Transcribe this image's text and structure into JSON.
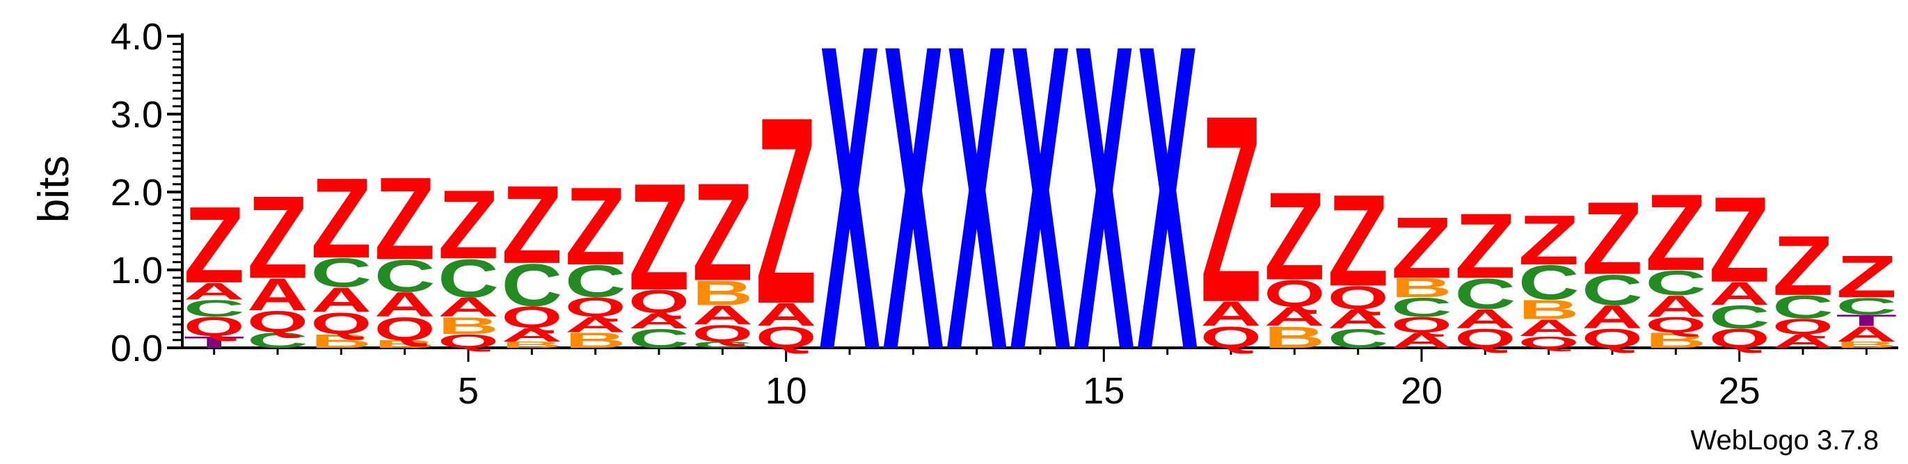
{
  "chart_data": {
    "type": "sequence-logo",
    "ylabel": "bits",
    "ylim": [
      0,
      4.0
    ],
    "y_ticks": [
      "0.0",
      "1.0",
      "2.0",
      "3.0",
      "4.0"
    ],
    "x_ticks": [
      5,
      10,
      15,
      20,
      25
    ],
    "n_positions": 27,
    "credit": "WebLogo 3.7.8",
    "colors": {
      "Z": "#ff0000",
      "Q": "#ff0000",
      "A": "#ff0000",
      "C": "#228b22",
      "B": "#ff8c00",
      "X": "#0000ff",
      "T": "#800080"
    },
    "columns": [
      {
        "position": 1,
        "stack": [
          [
            "T",
            0.15
          ],
          [
            "Q",
            0.25
          ],
          [
            "C",
            0.22
          ],
          [
            "A",
            0.22
          ],
          [
            "Z",
            1.0
          ]
        ]
      },
      {
        "position": 2,
        "stack": [
          [
            "C",
            0.2
          ],
          [
            "Q",
            0.28
          ],
          [
            "A",
            0.42
          ],
          [
            "Z",
            1.08
          ]
        ]
      },
      {
        "position": 3,
        "stack": [
          [
            "B",
            0.18
          ],
          [
            "Q",
            0.28
          ],
          [
            "A",
            0.32
          ],
          [
            "C",
            0.38
          ],
          [
            "Z",
            1.05
          ]
        ]
      },
      {
        "position": 4,
        "stack": [
          [
            "B",
            0.1
          ],
          [
            "Q",
            0.3
          ],
          [
            "A",
            0.32
          ],
          [
            "C",
            0.42
          ],
          [
            "Z",
            1.08
          ]
        ]
      },
      {
        "position": 5,
        "stack": [
          [
            "Q",
            0.18
          ],
          [
            "B",
            0.22
          ],
          [
            "A",
            0.25
          ],
          [
            "C",
            0.5
          ],
          [
            "Z",
            0.9
          ]
        ]
      },
      {
        "position": 6,
        "stack": [
          [
            "B",
            0.08
          ],
          [
            "A",
            0.18
          ],
          [
            "Q",
            0.28
          ],
          [
            "C",
            0.55
          ],
          [
            "Z",
            1.02
          ]
        ]
      },
      {
        "position": 7,
        "stack": [
          [
            "B",
            0.2
          ],
          [
            "A",
            0.2
          ],
          [
            "Q",
            0.25
          ],
          [
            "C",
            0.42
          ],
          [
            "Z",
            1.02
          ]
        ]
      },
      {
        "position": 8,
        "stack": [
          [
            "C",
            0.25
          ],
          [
            "A",
            0.2
          ],
          [
            "Q",
            0.3
          ],
          [
            "Z",
            1.4
          ]
        ]
      },
      {
        "position": 9,
        "stack": [
          [
            "C",
            0.08
          ],
          [
            "Q",
            0.22
          ],
          [
            "A",
            0.25
          ],
          [
            "B",
            0.32
          ],
          [
            "Z",
            1.28
          ]
        ]
      },
      {
        "position": 10,
        "stack": [
          [
            "Q",
            0.28
          ],
          [
            "A",
            0.3
          ],
          [
            "Z",
            2.45
          ]
        ]
      },
      {
        "position": 11,
        "stack": [
          [
            "X",
            4.0
          ]
        ]
      },
      {
        "position": 12,
        "stack": [
          [
            "X",
            4.0
          ]
        ]
      },
      {
        "position": 13,
        "stack": [
          [
            "X",
            4.0
          ]
        ]
      },
      {
        "position": 14,
        "stack": [
          [
            "X",
            4.0
          ]
        ]
      },
      {
        "position": 15,
        "stack": [
          [
            "X",
            4.0
          ]
        ]
      },
      {
        "position": 16,
        "stack": [
          [
            "X",
            4.0
          ]
        ]
      },
      {
        "position": 17,
        "stack": [
          [
            "Q",
            0.28
          ],
          [
            "A",
            0.32
          ],
          [
            "Z",
            2.45
          ]
        ]
      },
      {
        "position": 18,
        "stack": [
          [
            "B",
            0.28
          ],
          [
            "A",
            0.25
          ],
          [
            "Q",
            0.35
          ],
          [
            "Z",
            1.15
          ]
        ]
      },
      {
        "position": 19,
        "stack": [
          [
            "C",
            0.25
          ],
          [
            "A",
            0.25
          ],
          [
            "Q",
            0.3
          ],
          [
            "Z",
            1.2
          ]
        ]
      },
      {
        "position": 20,
        "stack": [
          [
            "A",
            0.2
          ],
          [
            "Q",
            0.2
          ],
          [
            "C",
            0.25
          ],
          [
            "B",
            0.25
          ],
          [
            "Z",
            0.8
          ]
        ]
      },
      {
        "position": 21,
        "stack": [
          [
            "Q",
            0.25
          ],
          [
            "A",
            0.25
          ],
          [
            "C",
            0.4
          ],
          [
            "Z",
            0.85
          ]
        ]
      },
      {
        "position": 22,
        "stack": [
          [
            "Q",
            0.15
          ],
          [
            "A",
            0.22
          ],
          [
            "B",
            0.25
          ],
          [
            "C",
            0.45
          ],
          [
            "Z",
            0.65
          ]
        ]
      },
      {
        "position": 23,
        "stack": [
          [
            "Q",
            0.25
          ],
          [
            "A",
            0.3
          ],
          [
            "C",
            0.4
          ],
          [
            "Z",
            0.95
          ]
        ]
      },
      {
        "position": 24,
        "stack": [
          [
            "B",
            0.2
          ],
          [
            "Q",
            0.2
          ],
          [
            "A",
            0.28
          ],
          [
            "C",
            0.32
          ],
          [
            "Z",
            1.0
          ]
        ]
      },
      {
        "position": 25,
        "stack": [
          [
            "Q",
            0.25
          ],
          [
            "C",
            0.3
          ],
          [
            "A",
            0.3
          ],
          [
            "Z",
            1.12
          ]
        ]
      },
      {
        "position": 26,
        "stack": [
          [
            "A",
            0.18
          ],
          [
            "Q",
            0.2
          ],
          [
            "C",
            0.3
          ],
          [
            "Z",
            0.78
          ]
        ]
      },
      {
        "position": 27,
        "stack": [
          [
            "B",
            0.08
          ],
          [
            "A",
            0.2
          ],
          [
            "T",
            0.15
          ],
          [
            "C",
            0.22
          ],
          [
            "Z",
            0.55
          ]
        ]
      }
    ]
  }
}
